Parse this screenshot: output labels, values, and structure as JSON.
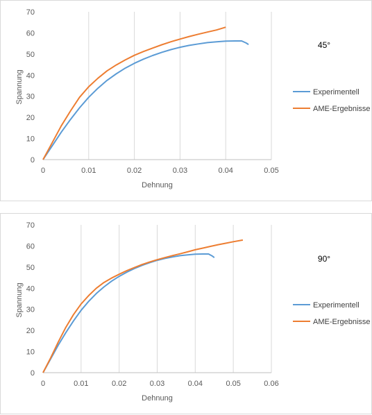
{
  "chart_data": [
    {
      "type": "line",
      "annotation": "45°",
      "xlabel": "Dehnung",
      "ylabel": "Spannung",
      "xlim": [
        0,
        0.05
      ],
      "ylim": [
        0,
        70
      ],
      "x_ticks": [
        "0",
        "0.01",
        "0.02",
        "0.03",
        "0.04",
        "0.05"
      ],
      "y_ticks": [
        "0",
        "10",
        "20",
        "30",
        "40",
        "50",
        "60",
        "70"
      ],
      "grid": "vertical",
      "legend": "right",
      "series": [
        {
          "name": "Experimentell",
          "color": "#5b9bd5",
          "points": [
            [
              0,
              0
            ],
            [
              0.002,
              6.5
            ],
            [
              0.004,
              13
            ],
            [
              0.006,
              19
            ],
            [
              0.008,
              24.5
            ],
            [
              0.01,
              29.5
            ],
            [
              0.012,
              33.8
            ],
            [
              0.014,
              37.5
            ],
            [
              0.016,
              40.6
            ],
            [
              0.018,
              43.3
            ],
            [
              0.02,
              45.6
            ],
            [
              0.022,
              47.6
            ],
            [
              0.024,
              49.3
            ],
            [
              0.026,
              50.8
            ],
            [
              0.028,
              52.1
            ],
            [
              0.03,
              53.2
            ],
            [
              0.032,
              54.1
            ],
            [
              0.034,
              54.8
            ],
            [
              0.036,
              55.4
            ],
            [
              0.038,
              55.8
            ],
            [
              0.04,
              56.1
            ],
            [
              0.042,
              56.2
            ],
            [
              0.0435,
              56.2
            ],
            [
              0.0445,
              55.2
            ],
            [
              0.045,
              54.5
            ]
          ]
        },
        {
          "name": "AME-Ergebnisse",
          "color": "#ed7d31",
          "points": [
            [
              0,
              0
            ],
            [
              0.002,
              8
            ],
            [
              0.004,
              16
            ],
            [
              0.006,
              23
            ],
            [
              0.008,
              29.5
            ],
            [
              0.01,
              34.5
            ],
            [
              0.012,
              38.5
            ],
            [
              0.014,
              42
            ],
            [
              0.016,
              44.8
            ],
            [
              0.018,
              47.2
            ],
            [
              0.02,
              49.4
            ],
            [
              0.022,
              51.2
            ],
            [
              0.024,
              52.8
            ],
            [
              0.026,
              54.4
            ],
            [
              0.028,
              55.8
            ],
            [
              0.03,
              57.1
            ],
            [
              0.032,
              58.3
            ],
            [
              0.034,
              59.4
            ],
            [
              0.036,
              60.4
            ],
            [
              0.038,
              61.4
            ],
            [
              0.04,
              62.7
            ]
          ]
        }
      ]
    },
    {
      "type": "line",
      "annotation": "90°",
      "xlabel": "Dehnung",
      "ylabel": "Spannung",
      "xlim": [
        0,
        0.06
      ],
      "ylim": [
        0,
        70
      ],
      "x_ticks": [
        "0",
        "0.01",
        "0.02",
        "0.03",
        "0.04",
        "0.05",
        "0.06"
      ],
      "y_ticks": [
        "0",
        "10",
        "20",
        "30",
        "40",
        "50",
        "60",
        "70"
      ],
      "grid": "vertical",
      "legend": "right",
      "series": [
        {
          "name": "Experimentell",
          "color": "#5b9bd5",
          "points": [
            [
              0,
              0
            ],
            [
              0.002,
              6.5
            ],
            [
              0.004,
              13
            ],
            [
              0.006,
              19
            ],
            [
              0.008,
              24.5
            ],
            [
              0.01,
              29.5
            ],
            [
              0.012,
              33.8
            ],
            [
              0.014,
              37.5
            ],
            [
              0.016,
              40.6
            ],
            [
              0.018,
              43.3
            ],
            [
              0.02,
              45.6
            ],
            [
              0.022,
              47.6
            ],
            [
              0.024,
              49.3
            ],
            [
              0.026,
              50.8
            ],
            [
              0.028,
              52.1
            ],
            [
              0.03,
              53.2
            ],
            [
              0.032,
              54.1
            ],
            [
              0.034,
              54.8
            ],
            [
              0.036,
              55.4
            ],
            [
              0.038,
              55.8
            ],
            [
              0.04,
              56.1
            ],
            [
              0.042,
              56.2
            ],
            [
              0.0435,
              56.2
            ],
            [
              0.0445,
              55.2
            ],
            [
              0.045,
              54.5
            ]
          ]
        },
        {
          "name": "AME-Ergebnisse",
          "color": "#ed7d31",
          "points": [
            [
              0,
              0
            ],
            [
              0.002,
              7
            ],
            [
              0.004,
              14.5
            ],
            [
              0.006,
              21.5
            ],
            [
              0.008,
              27.5
            ],
            [
              0.01,
              32.5
            ],
            [
              0.012,
              36.5
            ],
            [
              0.014,
              40
            ],
            [
              0.016,
              42.7
            ],
            [
              0.018,
              44.8
            ],
            [
              0.02,
              46.6
            ],
            [
              0.022,
              48.3
            ],
            [
              0.024,
              49.8
            ],
            [
              0.026,
              51.2
            ],
            [
              0.028,
              52.4
            ],
            [
              0.03,
              53.5
            ],
            [
              0.032,
              54.5
            ],
            [
              0.034,
              55.4
            ],
            [
              0.036,
              56.3
            ],
            [
              0.038,
              57.2
            ],
            [
              0.04,
              58.2
            ],
            [
              0.042,
              59
            ],
            [
              0.044,
              59.8
            ],
            [
              0.046,
              60.6
            ],
            [
              0.048,
              61.3
            ],
            [
              0.05,
              62
            ],
            [
              0.0525,
              62.8
            ]
          ]
        }
      ]
    }
  ]
}
